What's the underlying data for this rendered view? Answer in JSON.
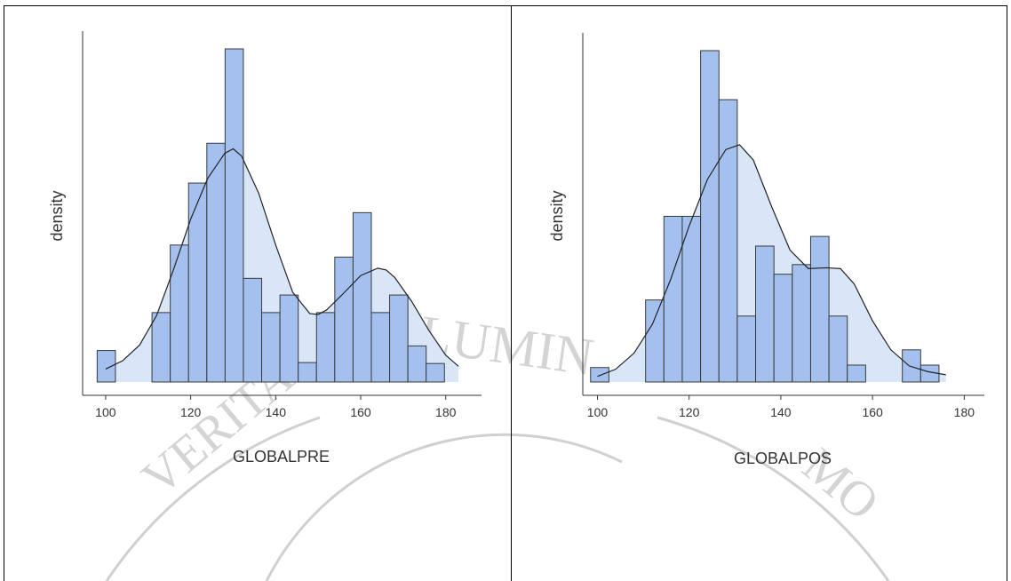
{
  "colors": {
    "bar_fill": "#a4c0ee",
    "bar_stroke": "#3a3a3a",
    "density_fill": "#d9e6f8",
    "density_line": "#222222",
    "axis": "#333333",
    "watermark": "#c8c8c8"
  },
  "chart_data": [
    {
      "type": "histogram",
      "xlabel": "GLOBALPRE",
      "ylabel": "density",
      "xlim": [
        95,
        188
      ],
      "xticks": [
        "100",
        "120",
        "140",
        "160",
        "180"
      ],
      "grid": false,
      "bins_start": 98,
      "bin_width": 4.3,
      "bar_heights": [
        3.4,
        0,
        0,
        7.5,
        14.8,
        21.5,
        25.8,
        36,
        11.2,
        7.5,
        9.4,
        2.1,
        7.5,
        13.5,
        18.3,
        7.5,
        9.4,
        3.9,
        2.0
      ],
      "density_curve": {
        "x": [
          100,
          104,
          108,
          112,
          116,
          120,
          124,
          128,
          130,
          132,
          136,
          140,
          144,
          148,
          150,
          152,
          156,
          160,
          164,
          166,
          168,
          172,
          176,
          180,
          183
        ],
        "y": [
          1.4,
          2.3,
          4.0,
          7.2,
          12.2,
          17.6,
          22.0,
          24.7,
          25.2,
          24.4,
          20.4,
          14.8,
          9.7,
          7.4,
          7.3,
          7.8,
          9.6,
          11.5,
          12.3,
          12.1,
          11.3,
          8.7,
          5.6,
          2.9,
          1.7
        ]
      }
    },
    {
      "type": "histogram",
      "xlabel": "GLOBALPOS",
      "ylabel": "density",
      "xlim": [
        97,
        184
      ],
      "xticks": [
        "100",
        "120",
        "140",
        "160",
        "180"
      ],
      "grid": false,
      "bins_start": 98.5,
      "bin_width": 4.0,
      "bar_heights": [
        1.8,
        0,
        0,
        10.2,
        20.6,
        20.6,
        41.2,
        35.1,
        8.2,
        16.9,
        13.4,
        14.6,
        18.1,
        8.2,
        2.1,
        0,
        0,
        4.0,
        2.1
      ],
      "density_curve": {
        "x": [
          100,
          104,
          108,
          112,
          116,
          120,
          124,
          128,
          131,
          134,
          138,
          142,
          146,
          150,
          153,
          156,
          160,
          164,
          168,
          172,
          176
        ],
        "y": [
          0.7,
          1.6,
          3.6,
          7.2,
          12.8,
          19.4,
          25.2,
          28.9,
          29.5,
          27.6,
          21.8,
          16.4,
          14.1,
          14.2,
          14.1,
          12.2,
          7.6,
          4.0,
          2.0,
          1.3,
          0.9
        ]
      }
    }
  ]
}
